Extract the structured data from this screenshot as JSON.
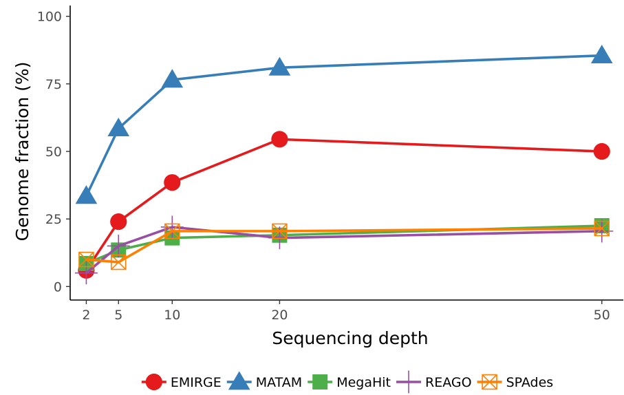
{
  "chart_data": {
    "type": "line",
    "xlabel": "Sequencing depth",
    "ylabel": "Genome fraction (%)",
    "x": [
      2,
      5,
      10,
      20,
      50
    ],
    "xlim": [
      0.5,
      52
    ],
    "ylim": [
      -5,
      104
    ],
    "yticks": [
      0,
      25,
      50,
      75,
      100
    ],
    "xticks": [
      2,
      5,
      10,
      20,
      50
    ],
    "grid": false,
    "legend_position": "bottom",
    "series": [
      {
        "name": "EMIRGE",
        "color": "#e41a1c",
        "marker": "circle",
        "values": [
          6,
          24,
          38.5,
          54.5,
          50
        ]
      },
      {
        "name": "MATAM",
        "color": "#377eb8",
        "marker": "triangle",
        "values": [
          33.5,
          58.5,
          76.5,
          81,
          85.5
        ]
      },
      {
        "name": "MegaHit",
        "color": "#4daf4a",
        "marker": "square",
        "values": [
          8.5,
          13.5,
          18,
          19,
          22.5
        ]
      },
      {
        "name": "REAGO",
        "color": "#984ea3",
        "marker": "plus",
        "values": [
          5,
          15,
          22,
          18,
          20.5
        ]
      },
      {
        "name": "SPAdes",
        "color": "#ff7f00",
        "marker": "boxcross",
        "values": [
          10,
          9,
          20.5,
          20.5,
          21.5
        ]
      }
    ]
  }
}
